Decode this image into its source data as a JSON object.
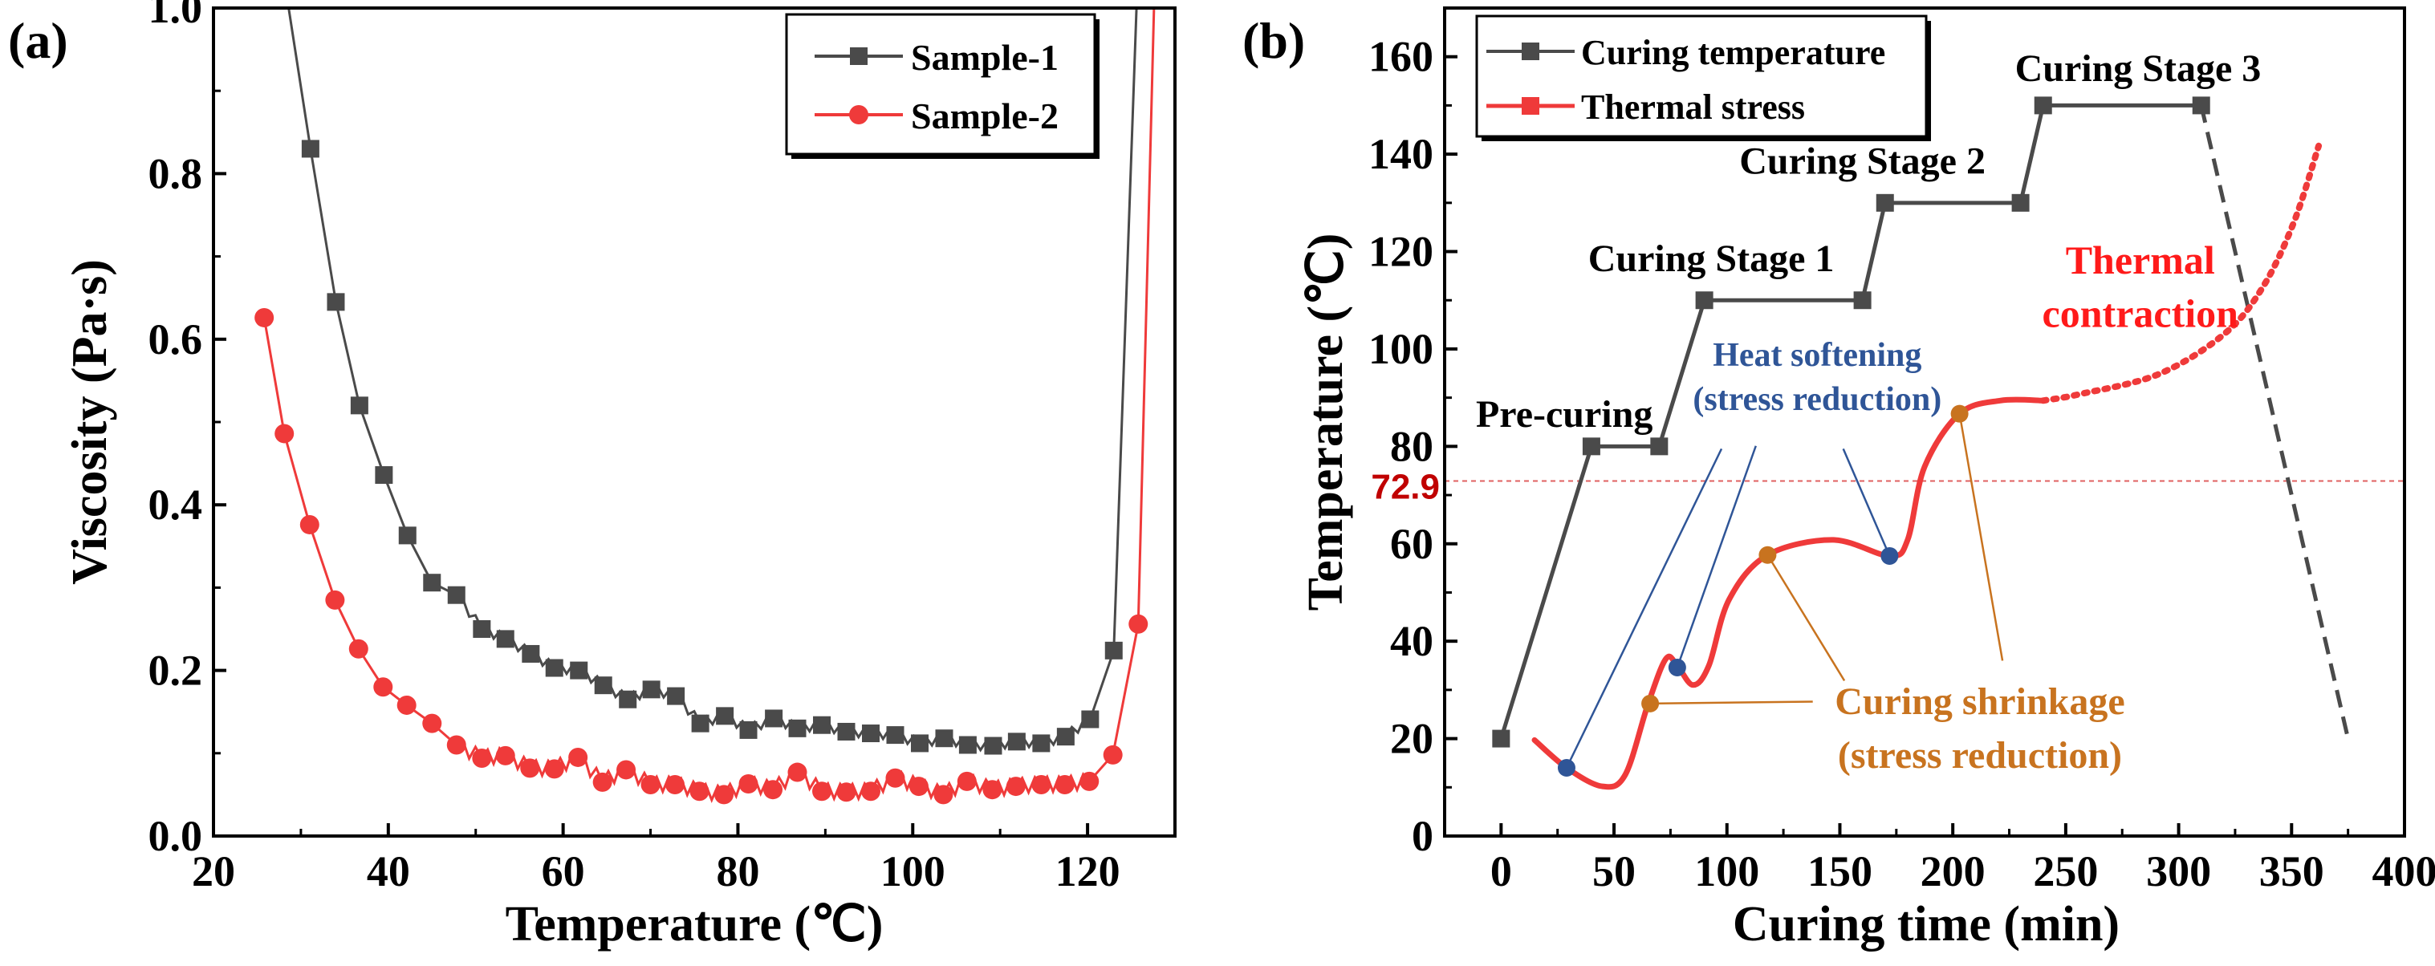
{
  "colors": {
    "gray": "#4a4a4a",
    "red": "#ef3a3a",
    "blue": "#2f5597",
    "orange": "#c8731f",
    "darkred": "#c00000",
    "contraction": "#ff1a1a"
  },
  "chart_data": [
    {
      "panel_label": "(a)",
      "type": "line",
      "xlabel": "Temperature (℃)",
      "ylabel": "Viscosity (Pa·s)",
      "xlim": [
        20,
        130
      ],
      "ylim": [
        0,
        1.0
      ],
      "xticks": [
        20,
        40,
        60,
        80,
        100,
        120
      ],
      "xtick_labels": [
        "20",
        "40",
        "60",
        "80",
        "100",
        "120"
      ],
      "yticks": [
        0,
        0.2,
        0.4,
        0.6,
        0.8,
        1.0
      ],
      "ytick_labels": [
        "0.0",
        "0.2",
        "0.4",
        "0.6",
        "0.8",
        "1.0"
      ],
      "legend": "top-right",
      "series": [
        {
          "name": "Sample-1",
          "marker": "square",
          "color": "#4a4a4a",
          "line_start": [
            28.6,
            1.0
          ],
          "line_end": [
            125.6,
            1.0
          ],
          "x": [
            31.1,
            34,
            36.7,
            39.5,
            42.2,
            45,
            47.8,
            50.7,
            53.4,
            56.3,
            59,
            61.8,
            64.6,
            67.4,
            70.1,
            72.9,
            75.7,
            78.5,
            81.2,
            84.1,
            86.8,
            89.6,
            92.4,
            95.2,
            98,
            100.8,
            103.6,
            106.3,
            109.2,
            111.9,
            114.7,
            117.5,
            120.3,
            123
          ],
          "y": [
            0.83,
            0.645,
            0.52,
            0.436,
            0.363,
            0.306,
            0.291,
            0.25,
            0.238,
            0.22,
            0.203,
            0.2,
            0.182,
            0.165,
            0.177,
            0.169,
            0.136,
            0.145,
            0.128,
            0.142,
            0.13,
            0.134,
            0.126,
            0.124,
            0.122,
            0.112,
            0.118,
            0.11,
            0.109,
            0.114,
            0.112,
            0.12,
            0.141,
            0.224
          ]
        },
        {
          "name": "Sample-2",
          "marker": "circle",
          "color": "#ef3a3a",
          "line_start": null,
          "line_end": [
            127.6,
            1.0
          ],
          "x": [
            25.8,
            28.1,
            31,
            33.9,
            36.6,
            39.4,
            42.1,
            45,
            47.8,
            50.7,
            53.4,
            56.2,
            59,
            61.7,
            64.5,
            67.2,
            70,
            72.8,
            75.6,
            78.4,
            81.2,
            84,
            86.8,
            89.6,
            92.4,
            95.2,
            98,
            100.7,
            103.5,
            106.2,
            109.1,
            111.8,
            114.7,
            117.4,
            120.2,
            122.9,
            125.8
          ],
          "y": [
            0.626,
            0.486,
            0.376,
            0.285,
            0.226,
            0.18,
            0.158,
            0.136,
            0.11,
            0.094,
            0.097,
            0.082,
            0.081,
            0.095,
            0.065,
            0.08,
            0.062,
            0.062,
            0.054,
            0.05,
            0.063,
            0.056,
            0.077,
            0.054,
            0.053,
            0.054,
            0.07,
            0.06,
            0.05,
            0.066,
            0.056,
            0.06,
            0.062,
            0.062,
            0.066,
            0.098,
            0.256
          ]
        }
      ]
    },
    {
      "panel_label": "(b)",
      "type": "line",
      "xlabel": "Curing time (min)",
      "ylabel": "Temperature (℃)",
      "xlim": [
        -25,
        400
      ],
      "ylim": [
        0,
        170
      ],
      "xticks": [
        0,
        50,
        100,
        150,
        200,
        250,
        300,
        350,
        400
      ],
      "xtick_labels": [
        "0",
        "50",
        "100",
        "150",
        "200",
        "250",
        "300",
        "350",
        "400"
      ],
      "yticks": [
        0,
        20,
        40,
        60,
        80,
        100,
        120,
        140,
        160
      ],
      "ytick_labels": [
        "0",
        "20",
        "40",
        "60",
        "80",
        "100",
        "120",
        "140",
        "160"
      ],
      "reference_line": {
        "y": 72.9,
        "label": "72.9"
      },
      "legend": "top-left",
      "series": [
        {
          "name": "Curing temperature",
          "marker": "square",
          "color": "#4a4a4a",
          "x": [
            0,
            40,
            70,
            90,
            160,
            170,
            230,
            240,
            310
          ],
          "y": [
            20,
            80,
            80,
            110,
            110,
            130,
            130,
            150,
            150
          ],
          "dashed_extension": {
            "x": [
              310,
              375
            ],
            "y": [
              150,
              20
            ]
          }
        },
        {
          "name": "Thermal stress",
          "marker": "square",
          "color": "#ef3a3a",
          "x": [
            14.8,
            29,
            44.8,
            55,
            65,
            73,
            78,
            85,
            92,
            101,
            118,
            147,
            172,
            180,
            187.5,
            203,
            221,
            240
          ],
          "y": [
            19.7,
            14,
            10.2,
            12.6,
            27,
            36.4,
            35,
            31,
            35,
            48.6,
            57.7,
            60.8,
            57.5,
            60.8,
            75.8,
            86.7,
            89.4,
            89.4
          ],
          "dotted_extension": {
            "x": [
              240,
              256,
              291,
              320,
              337,
              351,
              362
            ],
            "y": [
              89.4,
              90.7,
              94.8,
              103,
              112.5,
              126,
              141.7
            ]
          }
        }
      ],
      "highlight_points": {
        "heat_softening": {
          "x": [
            29,
            78,
            172
          ],
          "y": [
            14,
            34.6,
            57.5
          ],
          "color": "#2f5597"
        },
        "curing_shrinkage": {
          "x": [
            66,
            118,
            203
          ],
          "y": [
            27.2,
            57.7,
            86.7
          ],
          "color": "#c8731f"
        }
      },
      "annotations": {
        "pre_curing": "Pre-curing",
        "stage1": "Curing Stage 1",
        "stage2": "Curing Stage 2",
        "stage3": "Curing Stage 3",
        "heat_softening_1": "Heat softening",
        "heat_softening_2": "(stress reduction)",
        "thermal_1": "Thermal",
        "thermal_2": "contraction",
        "shrinkage_1": "Curing shrinkage",
        "shrinkage_2": "(stress reduction)"
      }
    }
  ]
}
